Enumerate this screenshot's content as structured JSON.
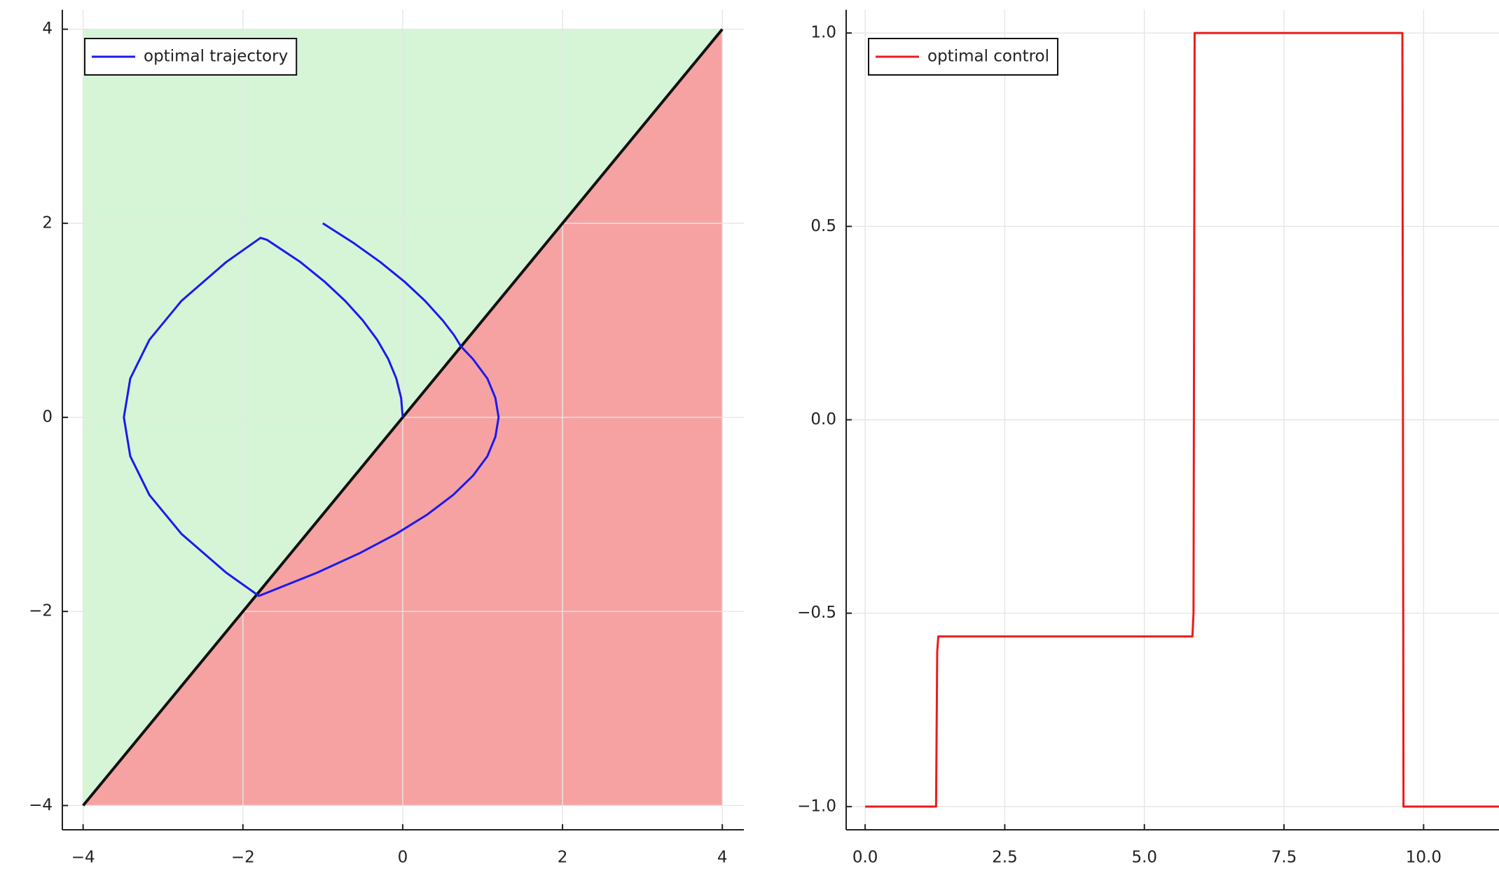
{
  "chart_data": [
    {
      "type": "line",
      "xlim": [
        -4.26,
        4.27
      ],
      "ylim": [
        -4.25,
        4.2
      ],
      "xticks": [
        {
          "value": -4,
          "label": "−4"
        },
        {
          "value": -2,
          "label": "−2"
        },
        0,
        2,
        4
      ],
      "yticks": [
        {
          "value": -4,
          "label": "−4"
        },
        {
          "value": -2,
          "label": "−2"
        },
        0,
        2,
        4
      ],
      "grid": true,
      "legend": "top-left",
      "regions": {
        "above_color": "#d5f5d6",
        "below_color": "#f6a2a2"
      },
      "boundary": {
        "x": [
          -4,
          4
        ],
        "y": [
          -4,
          4
        ],
        "color": "#111111"
      },
      "series": [
        {
          "name": "optimal trajectory",
          "color": "#1a1aee",
          "x": [
            -1,
            -0.62,
            -0.28,
            0.02,
            0.28,
            0.5,
            0.64,
            0.73,
            0.88,
            1.06,
            1.16,
            1.2,
            1.16,
            1.06,
            0.88,
            0.63,
            0.31,
            -0.08,
            -0.54,
            -1.07,
            -1.8,
            -2.21,
            -2.77,
            -3.17,
            -3.41,
            -3.49,
            -3.41,
            -3.17,
            -2.77,
            -2.21,
            -1.78,
            -1.7,
            -1.28,
            -0.98,
            -0.72,
            -0.5,
            -0.32,
            -0.18,
            -0.08,
            -0.02,
            0
          ],
          "y": [
            2,
            1.8,
            1.6,
            1.4,
            1.2,
            1.0,
            0.85,
            0.73,
            0.6,
            0.4,
            0.2,
            0,
            -0.2,
            -0.4,
            -0.6,
            -0.8,
            -1.0,
            -1.2,
            -1.4,
            -1.6,
            -1.84,
            -1.6,
            -1.2,
            -0.8,
            -0.4,
            0,
            0.4,
            0.8,
            1.2,
            1.6,
            1.85,
            1.83,
            1.6,
            1.4,
            1.2,
            1.0,
            0.8,
            0.6,
            0.4,
            0.2,
            0
          ]
        }
      ]
    },
    {
      "type": "line",
      "xlim": [
        -0.34,
        11.35
      ],
      "ylim": [
        -1.06,
        1.06
      ],
      "xticks": [
        {
          "value": 0,
          "label": "0.0"
        },
        2.5,
        {
          "value": 5,
          "label": "5.0"
        },
        7.5,
        {
          "value": 10,
          "label": "10.0"
        }
      ],
      "yticks": [
        {
          "value": -1,
          "label": "−1.0"
        },
        {
          "value": -0.5,
          "label": "−0.5"
        },
        {
          "value": 0,
          "label": "0.0"
        },
        0.5,
        {
          "value": 1,
          "label": "1.0"
        }
      ],
      "grid": true,
      "legend": "top-left",
      "series": [
        {
          "name": "optimal control",
          "color": "#ee1a1a",
          "x": [
            0,
            1.27,
            1.29,
            1.31,
            5.86,
            5.88,
            5.9,
            9.62,
            9.64,
            11.35
          ],
          "y": [
            -1,
            -1,
            -0.6,
            -0.56,
            -0.56,
            -0.5,
            1,
            1,
            -1,
            -1
          ]
        }
      ]
    }
  ]
}
